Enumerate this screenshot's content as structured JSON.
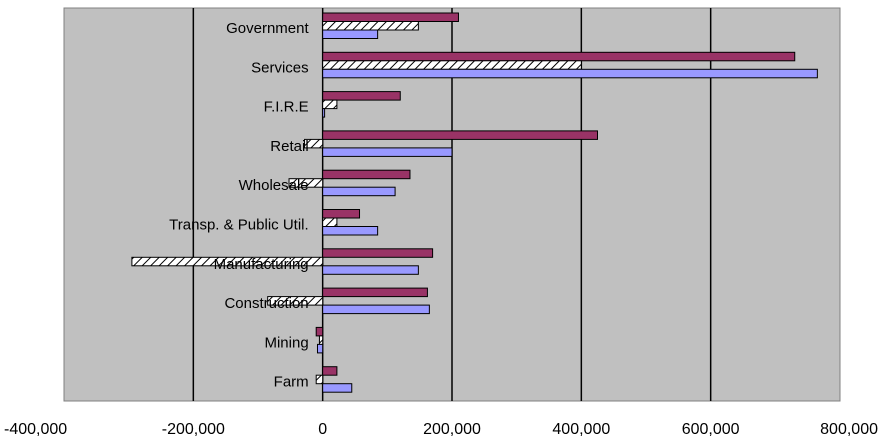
{
  "chart_data": {
    "type": "bar",
    "orientation": "horizontal",
    "title": "",
    "xlabel": "",
    "ylabel": "",
    "xlim": [
      -400000,
      800000
    ],
    "xticks": [
      -400000,
      -200000,
      0,
      200000,
      400000,
      600000,
      800000
    ],
    "xtick_labels": [
      "-400,000",
      "-200,000",
      "0",
      "200,000",
      "400,000",
      "600,000",
      "800,000"
    ],
    "grid": "vertical major gridlines",
    "legend": "none",
    "categories": [
      "Government",
      "Services",
      "F.I.R.E",
      "Retail",
      "Wholesale",
      "Transp. & Public Util.",
      "Manufacturing",
      "Construction",
      "Mining",
      "Farm"
    ],
    "series": [
      {
        "color": "#993366",
        "pattern": "solid",
        "values": [
          210000,
          730000,
          120000,
          425000,
          135000,
          57000,
          170000,
          162000,
          -10000,
          22000
        ]
      },
      {
        "color": "#ffffff",
        "pattern": "diagonal-hatch",
        "values": [
          148000,
          400000,
          22000,
          -28000,
          -52000,
          22000,
          -295000,
          -85000,
          -5000,
          -10000
        ]
      },
      {
        "color": "#9999ff",
        "pattern": "solid",
        "values": [
          85000,
          765000,
          3000,
          200000,
          112000,
          85000,
          148000,
          165000,
          -8000,
          45000
        ]
      }
    ],
    "colors": {
      "plot_background": "#c0c0c0",
      "gridline": "#000000"
    }
  }
}
